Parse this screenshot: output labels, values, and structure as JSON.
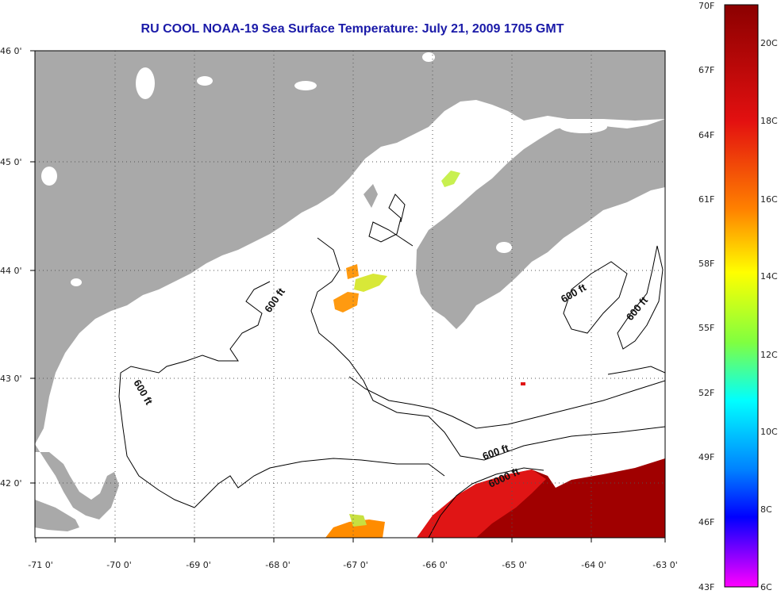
{
  "title": "RU COOL  NOAA-19  Sea Surface Temperature:  July 21, 2009 1705 GMT",
  "map": {
    "lon_labels": [
      "-71 0'",
      "-70 0'",
      "-69 0'",
      "-68 0'",
      "-67 0'",
      "-66 0'",
      "-65 0'",
      "-64 0'",
      "-63 0'"
    ],
    "lat_labels": [
      "46 0'",
      "45 0'",
      "44 0'",
      "43 0'",
      "42 0'"
    ],
    "contour_labels": [
      "600 ft",
      "600 ft",
      "600 ft",
      "600 ft",
      "600 ft",
      "6000 ft"
    ],
    "colors": {
      "land": "#a9a9a9",
      "water": "#ffffff",
      "contour": "#000000"
    }
  },
  "colorbar": {
    "fahrenheit_labels": [
      "70F",
      "67F",
      "64F",
      "61F",
      "58F",
      "55F",
      "52F",
      "49F",
      "46F",
      "43F"
    ],
    "celsius_labels": [
      "20C",
      "18C",
      "16C",
      "14C",
      "12C",
      "10C",
      "8C",
      "6C"
    ]
  }
}
